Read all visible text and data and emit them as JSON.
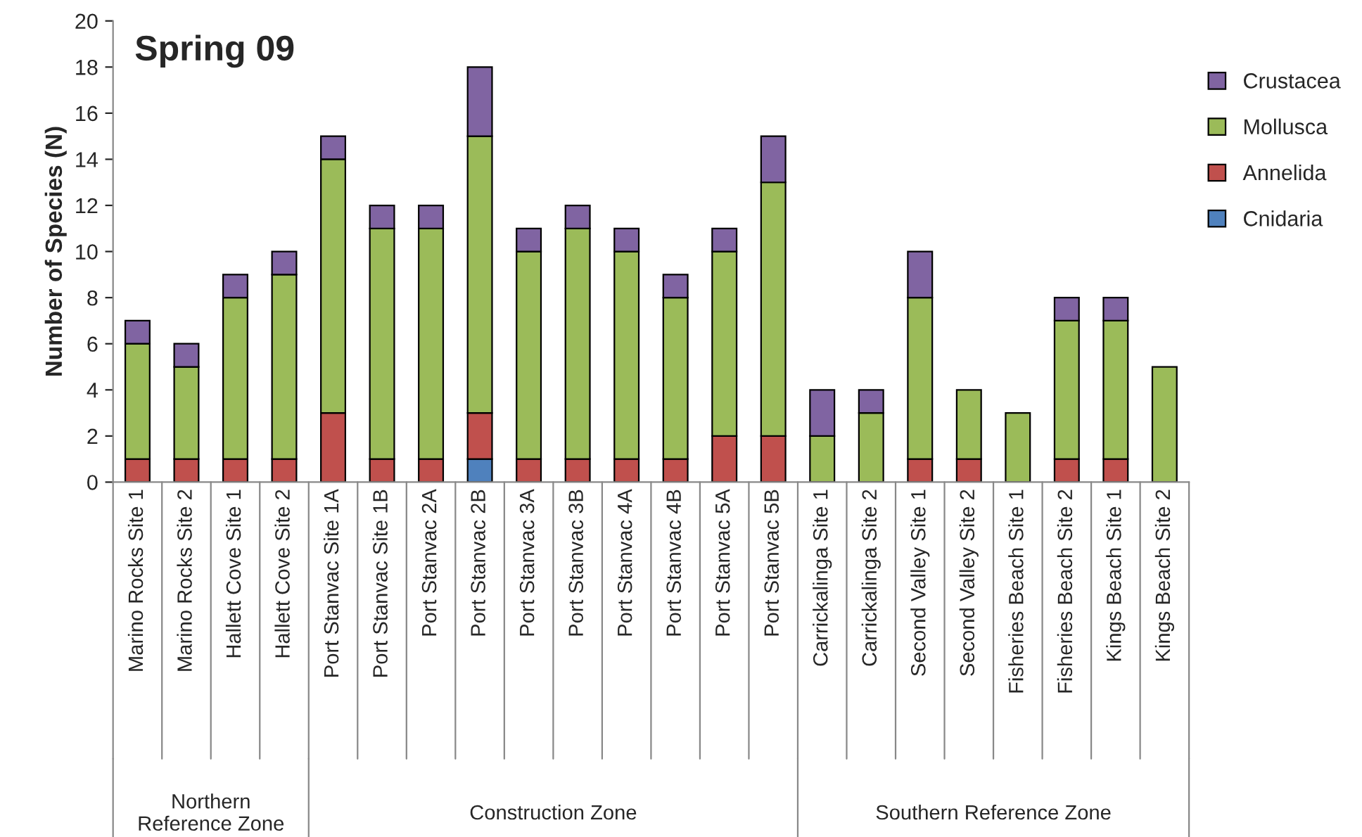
{
  "chart_data": {
    "type": "bar",
    "stacked": true,
    "title": "Spring 09",
    "ylabel": "Number of Species (N)",
    "categories": [
      "Marino Rocks Site 1",
      "Marino Rocks Site 2",
      "Hallett Cove Site 1",
      "Hallett Cove Site 2",
      "Port Stanvac Site 1A",
      "Port Stanvac Site 1B",
      "Port Stanvac 2A",
      "Port Stanvac 2B",
      "Port Stanvac 3A",
      "Port Stanvac 3B",
      "Port Stanvac 4A",
      "Port Stanvac 4B",
      "Port Stanvac 5A",
      "Port Stanvac 5B",
      "Carrickalinga Site 1",
      "Carrickalinga Site 2",
      "Second Valley Site 1",
      "Second Valley Site 2",
      "Fisheries Beach Site 1",
      "Fisheries Beach Site 2",
      "Kings Beach Site 1",
      "Kings Beach Site 2"
    ],
    "series": [
      {
        "name": "Cnidaria",
        "color": "#4f81bd",
        "values": [
          0,
          0,
          0,
          0,
          0,
          0,
          0,
          1,
          0,
          0,
          0,
          0,
          0,
          0,
          0,
          0,
          0,
          0,
          0,
          0,
          0,
          0
        ]
      },
      {
        "name": "Annelida",
        "color": "#c0504d",
        "values": [
          1,
          1,
          1,
          1,
          3,
          1,
          1,
          2,
          1,
          1,
          1,
          1,
          2,
          2,
          0,
          0,
          1,
          1,
          0,
          1,
          1,
          0
        ]
      },
      {
        "name": "Mollusca",
        "color": "#9bbb59",
        "values": [
          5,
          4,
          7,
          8,
          11,
          10,
          10,
          12,
          9,
          10,
          9,
          7,
          8,
          11,
          2,
          3,
          7,
          3,
          3,
          6,
          6,
          5
        ]
      },
      {
        "name": "Crustacea",
        "color": "#8064a2",
        "values": [
          1,
          1,
          1,
          1,
          1,
          1,
          1,
          3,
          1,
          1,
          1,
          1,
          1,
          2,
          2,
          1,
          2,
          0,
          0,
          1,
          1,
          0
        ]
      }
    ],
    "ylim": [
      0,
      20
    ],
    "yticks": [
      0,
      2,
      4,
      6,
      8,
      10,
      12,
      14,
      16,
      18,
      20
    ],
    "grid": false,
    "legend": "right",
    "annotations": [
      "Northern Reference Zone",
      "Construction Zone",
      "Southern Reference Zone"
    ]
  }
}
